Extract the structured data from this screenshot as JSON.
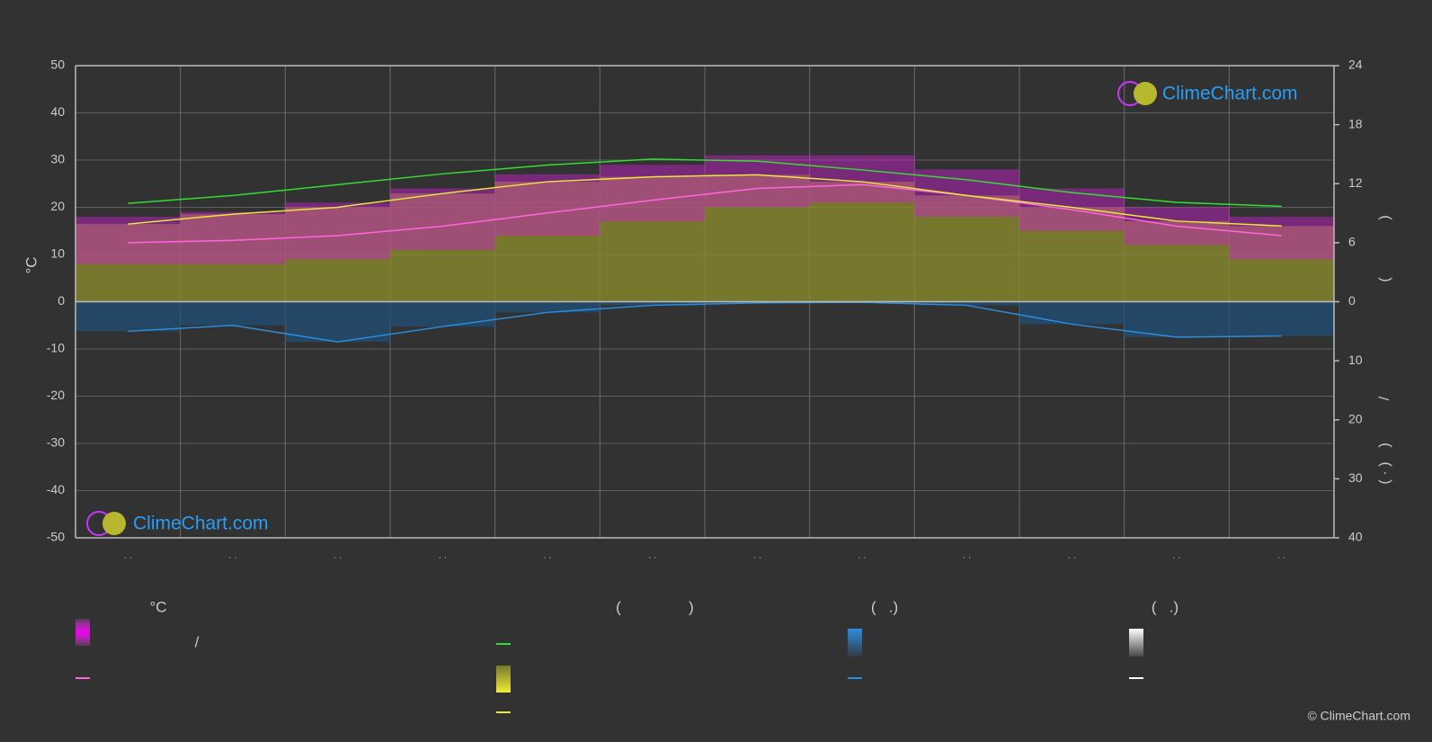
{
  "chart_data": {
    "type": "line",
    "categories": [
      "· ·",
      "· ·",
      "· ·",
      "· ·",
      "· ·",
      "· ·",
      "· ·",
      "· ·",
      "· ·",
      "· ·",
      "· ·",
      "· ·"
    ],
    "ylabel": "°C",
    "ylim": [
      -50,
      50
    ],
    "yticks": [
      -50,
      -40,
      -30,
      -20,
      -10,
      0,
      10,
      20,
      30,
      40,
      50
    ],
    "y2lim": [
      0,
      24
    ],
    "y2ticks": [
      0,
      6,
      12,
      18,
      24
    ],
    "y3lim": [
      0,
      40
    ],
    "y3ticks": [
      10,
      20,
      30,
      40
    ],
    "grid": true,
    "temperature_range": {
      "color": "#d020d0",
      "max": [
        18,
        19,
        21,
        24,
        27,
        29,
        31,
        31,
        28,
        24,
        20,
        18
      ],
      "min": [
        8,
        8,
        9,
        11,
        14,
        17,
        20,
        21,
        18,
        15,
        12,
        9
      ]
    },
    "series": [
      {
        "color": "#ff66dd",
        "axis": "y",
        "values": [
          12.5,
          13,
          14,
          16,
          18.8,
          21.5,
          24,
          24.8,
          22.5,
          19.5,
          16,
          14
        ]
      },
      {
        "color": "#e8e83a",
        "fill": "#8f8f2c",
        "axis": "y2",
        "values": [
          7.9,
          8.9,
          9.6,
          11.0,
          12.2,
          12.7,
          12.9,
          12.2,
          10.8,
          9.6,
          8.2,
          7.7
        ]
      },
      {
        "color": "#33dd33",
        "axis": "y2",
        "values": [
          10.0,
          10.8,
          11.9,
          13.0,
          13.9,
          14.5,
          14.3,
          13.4,
          12.4,
          11.1,
          10.1,
          9.7
        ]
      },
      {
        "color": "#2a8ee0",
        "fill": "#1f4f75",
        "axis": "y3",
        "values": [
          5.0,
          4.0,
          6.8,
          4.2,
          1.8,
          0.6,
          0.2,
          0.1,
          0.6,
          3.8,
          6.0,
          5.8
        ]
      }
    ],
    "right_axis_texts": [
      ")",
      "(",
      "/",
      ")",
      "( · )"
    ],
    "legend_texts": [
      "°C",
      "/",
      "(",
      ")",
      "(   .)",
      "(   .)"
    ],
    "watermark": "ClimeChart.com",
    "copyright": "© ClimeChart.com"
  }
}
